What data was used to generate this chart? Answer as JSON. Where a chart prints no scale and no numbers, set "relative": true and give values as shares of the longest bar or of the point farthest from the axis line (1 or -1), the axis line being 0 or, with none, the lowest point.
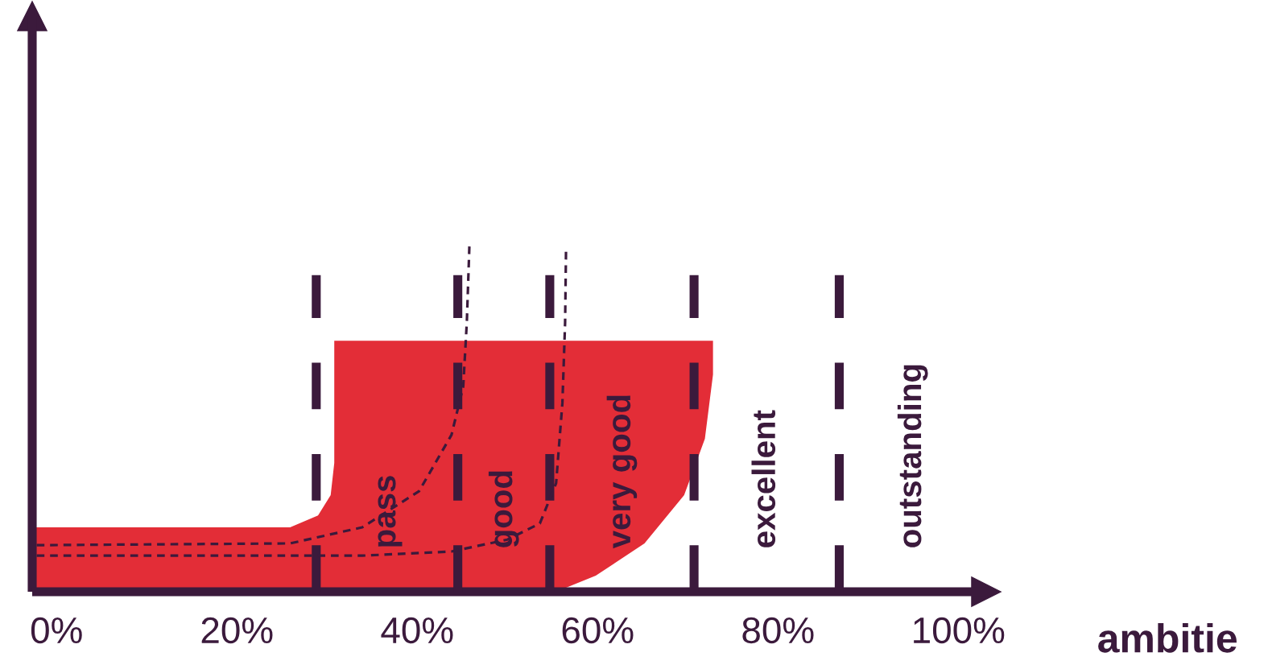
{
  "chart_data": {
    "type": "area",
    "relative": true,
    "xlabel": "ambitie",
    "xlim": [
      -2.7,
      103.1
    ],
    "xticks": [
      {
        "value": 0,
        "label": "0%"
      },
      {
        "value": 20,
        "label": "20%"
      },
      {
        "value": 40,
        "label": "40%"
      },
      {
        "value": 60,
        "label": "60%"
      },
      {
        "value": 80,
        "label": "80%"
      },
      {
        "value": 100,
        "label": "100%"
      }
    ],
    "tick_labels": "x",
    "grid": false,
    "legend": false,
    "series": [
      {
        "color": "#e32d37",
        "x": [
          -2.7,
          25.9,
          29.0,
          30.4,
          30.8,
          30.8,
          72.8,
          72.8,
          71.9,
          69.6,
          65.2,
          59.8,
          55.4
        ],
        "values": [
          0.184,
          0.184,
          0.218,
          0.276,
          0.368,
          0.717,
          0.717,
          0.62,
          0.437,
          0.276,
          0.138,
          0.046,
          0
        ]
      },
      {
        "type": "line",
        "color": "#3b1a3c",
        "line_style": "dashed",
        "x": [
          -2.2,
          25.9,
          33.9,
          40.2,
          43.8,
          45.1,
          45.5,
          45.8
        ],
        "values": [
          0.133,
          0.138,
          0.184,
          0.287,
          0.448,
          0.586,
          0.77,
          1.0
        ]
      },
      {
        "type": "line",
        "color": "#3b1a3c",
        "line_style": "dashed",
        "x": [
          -2.2,
          33.9,
          43.8,
          50.0,
          53.6,
          55.4,
          56.1,
          56.4,
          56.5
        ],
        "values": [
          0.103,
          0.103,
          0.115,
          0.149,
          0.195,
          0.31,
          0.54,
          0.77,
          0.977
        ]
      }
    ],
    "ref_lines": [
      {
        "axis": "x",
        "value": 28.8,
        "color": "#3b1a3c",
        "line_style": "dashed"
      },
      {
        "axis": "x",
        "value": 44.5,
        "color": "#3b1a3c",
        "line_style": "dashed"
      },
      {
        "axis": "x",
        "value": 54.7,
        "color": "#3b1a3c",
        "line_style": "dashed"
      },
      {
        "axis": "x",
        "value": 70.7,
        "color": "#3b1a3c",
        "line_style": "dashed"
      },
      {
        "axis": "x",
        "value": 86.8,
        "color": "#3b1a3c",
        "line_style": "dashed"
      }
    ],
    "annotations": [
      "pass",
      "good",
      "very good",
      "excellent",
      "outstanding"
    ]
  }
}
